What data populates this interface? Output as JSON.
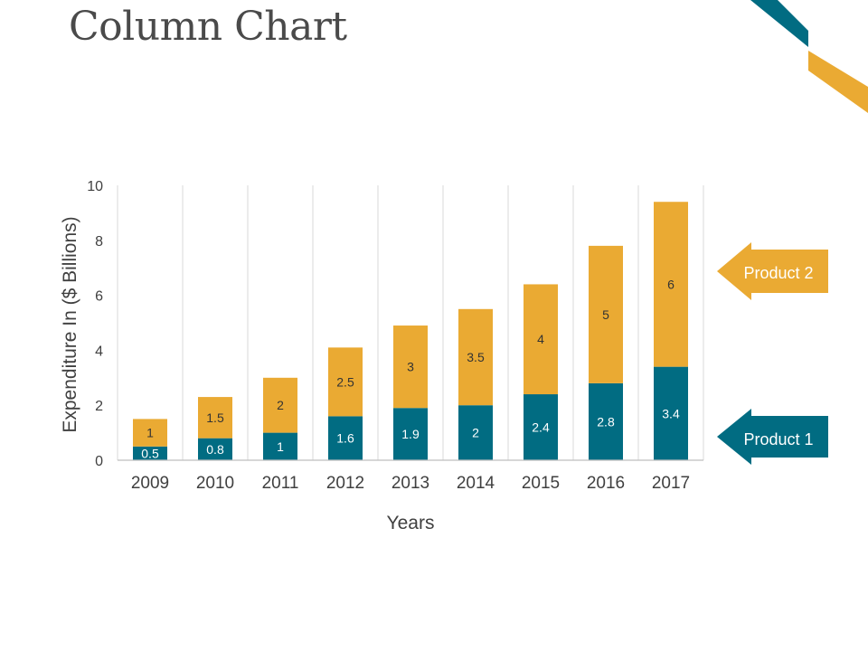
{
  "slide": {
    "title": "Column Chart",
    "colors": {
      "product1": "#016c82",
      "product2": "#eaaa33",
      "title_text": "#4a4a4a",
      "axis_text": "#404040",
      "grid": "#d9d9d9"
    }
  },
  "chart_data": {
    "type": "bar",
    "stacked": true,
    "title": "",
    "xlabel": "Years",
    "ylabel": "Expenditure In ($ Billions)",
    "ylim": [
      0,
      10
    ],
    "yticks": [
      0,
      2,
      4,
      6,
      8,
      10
    ],
    "grid": "vertical",
    "legend": "right",
    "categories": [
      "2009",
      "2010",
      "2011",
      "2012",
      "2013",
      "2014",
      "2015",
      "2016",
      "2017"
    ],
    "series": [
      {
        "name": "Product 1",
        "color": "#016c82",
        "values": [
          0.5,
          0.8,
          1,
          1.6,
          1.9,
          2,
          2.4,
          2.8,
          3.4
        ]
      },
      {
        "name": "Product 2",
        "color": "#eaaa33",
        "values": [
          1,
          1.5,
          2,
          2.5,
          3,
          3.5,
          4,
          5,
          6
        ]
      }
    ]
  }
}
